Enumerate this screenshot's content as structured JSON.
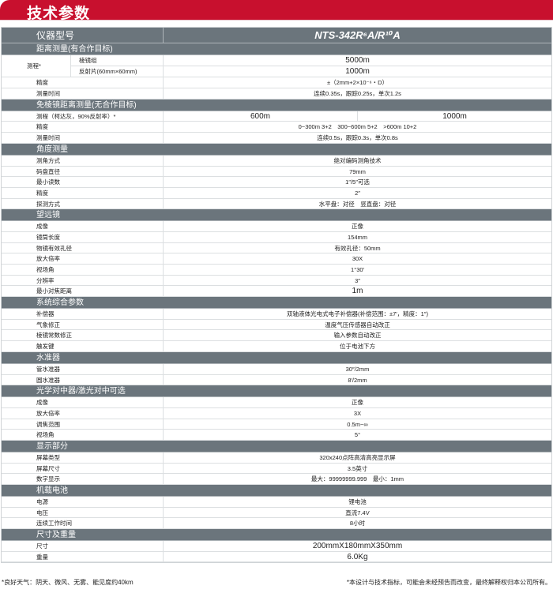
{
  "title": "技术参数",
  "model": {
    "label": "仪器型号",
    "value": "NTS-342R⁶A/R¹⁰A"
  },
  "sections": [
    {
      "title": "距离测量(有合作目标)",
      "group": {
        "label": "测程*",
        "rows": [
          {
            "label": "棱镜组",
            "value": "5000m",
            "big": true
          },
          {
            "label": "反射片(60mm×60mm)",
            "value": "1000m",
            "big": true
          }
        ]
      },
      "rows": [
        {
          "label": "精度",
          "value": "±（2mm+2×10⁻⁶・D）"
        },
        {
          "label": "测量时间",
          "value": "连续0.35s，跟踪0.25s，单次1.2s"
        }
      ]
    },
    {
      "title": "免棱镜距离测量(无合作目标)",
      "rows": [
        {
          "label": "测程（柯达灰，90%反射率）*",
          "values": [
            "600m",
            "1000m"
          ],
          "big": true
        },
        {
          "label": "精度",
          "value": "0~300m 3+2　300~600m 5+2　>600m 10+2"
        },
        {
          "label": "测量时间",
          "value": "连续0.5s，跟踪0.3s，单次0.8s"
        }
      ]
    },
    {
      "title": "角度测量",
      "rows": [
        {
          "label": "测角方式",
          "value": "绝对编码测角技术"
        },
        {
          "label": "码盘直径",
          "value": "79mm"
        },
        {
          "label": "最小读数",
          "value": "1″/5″可选"
        },
        {
          "label": "精度",
          "value": "2″"
        },
        {
          "label": "探测方式",
          "value": "水平盘：对径　竖直盘：对径"
        }
      ]
    },
    {
      "title": "望远镜",
      "rows": [
        {
          "label": "成像",
          "value": "正像"
        },
        {
          "label": "镜筒长度",
          "value": "154mm"
        },
        {
          "label": "物镜有效孔径",
          "value": "有效孔径：50mm"
        },
        {
          "label": "放大倍率",
          "value": "30X"
        },
        {
          "label": "视场角",
          "value": "1°30′"
        },
        {
          "label": "分辨率",
          "value": "3″"
        },
        {
          "label": "最小对焦距离",
          "value": "1m",
          "big": true
        }
      ]
    },
    {
      "title": "系统综合参数",
      "rows": [
        {
          "label": "补偿器",
          "value": "双轴液体光电式电子补偿器(补偿范围：±7′，精度：1″)"
        },
        {
          "label": "气象修正",
          "value": "温度气压传感器自动改正"
        },
        {
          "label": "棱镜常数修正",
          "value": "输入参数自动改正"
        },
        {
          "label": "触发键",
          "value": "位于电池下方"
        }
      ]
    },
    {
      "title": "水准器",
      "rows": [
        {
          "label": "管水准器",
          "value": "30″/2mm"
        },
        {
          "label": "圆水准器",
          "value": "8′/2mm"
        }
      ]
    },
    {
      "title": "光学对中器/激光对中可选",
      "rows": [
        {
          "label": "成像",
          "value": "正像"
        },
        {
          "label": "放大倍率",
          "value": "3X"
        },
        {
          "label": "调焦范围",
          "value": "0.5m~∞"
        },
        {
          "label": "视场角",
          "value": "5°"
        }
      ]
    },
    {
      "title": "显示部分",
      "rows": [
        {
          "label": "屏幕类型",
          "value": "320x240点阵高清高亮显示屏"
        },
        {
          "label": "屏幕尺寸",
          "value": "3.5英寸"
        },
        {
          "label": "数字显示",
          "value": "最大：99999999.999　最小：1mm"
        }
      ]
    },
    {
      "title": "机载电池",
      "rows": [
        {
          "label": "电源",
          "value": "锂电池"
        },
        {
          "label": "电压",
          "value": "直流7.4V"
        },
        {
          "label": "连续工作时间",
          "value": "8小时"
        }
      ]
    },
    {
      "title": "尺寸及重量",
      "rows": [
        {
          "label": "尺寸",
          "value": "200mmX180mmX350mm",
          "big": true
        },
        {
          "label": "重量",
          "value": "6.0Kg",
          "big": true
        }
      ]
    }
  ],
  "footer": {
    "left": "*良好天气：阴天、微风、无雾、能见度约40km",
    "right": "*本设计与技术指标，可能会未经预告而改变，最终解释权归本公司所有。"
  },
  "colors": {
    "banner": "#c8102e",
    "section": "#6b757c"
  }
}
